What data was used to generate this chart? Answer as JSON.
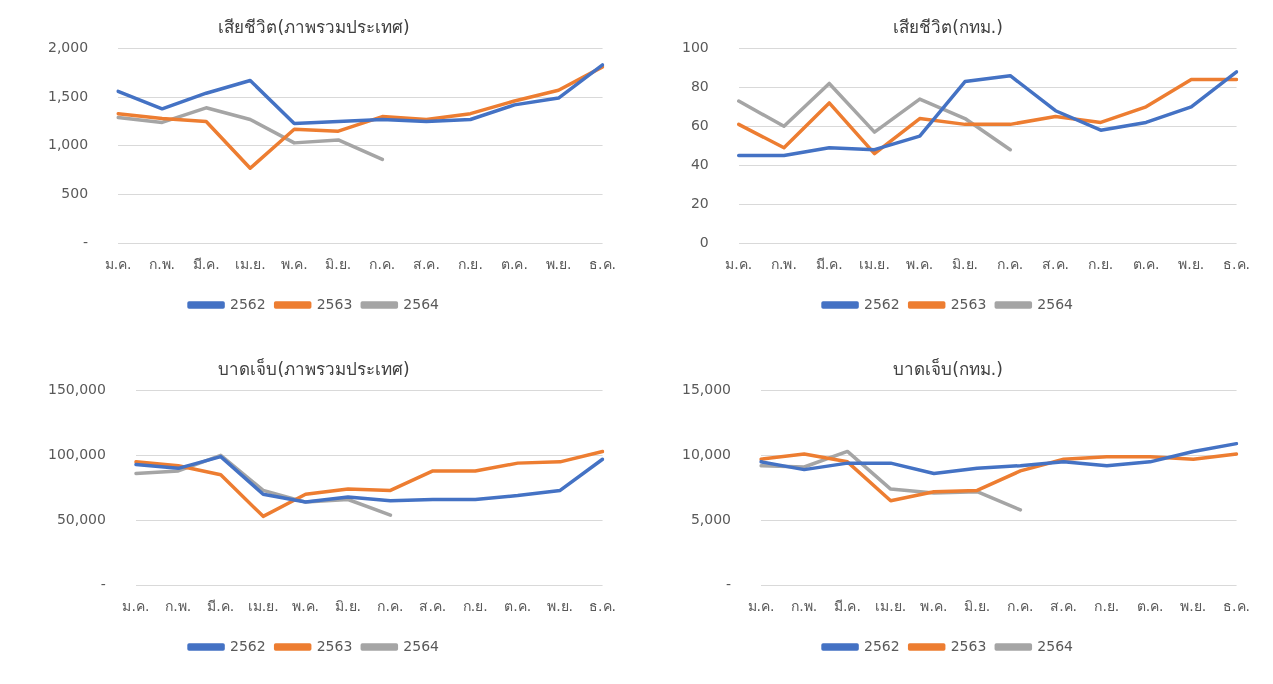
{
  "chart_data": [
    {
      "type": "line",
      "title": "เสียชีวิต(ภาพรวมประเทศ)",
      "categories": [
        "ม.ค.",
        "ก.พ.",
        "มี.ค.",
        "เม.ย.",
        "พ.ค.",
        "มิ.ย.",
        "ก.ค.",
        "ส.ค.",
        "ก.ย.",
        "ต.ค.",
        "พ.ย.",
        "ธ.ค."
      ],
      "series": [
        {
          "name": "2562",
          "color": "#4472c4",
          "values": [
            1560,
            1380,
            1540,
            1670,
            1230,
            1250,
            1270,
            1250,
            1270,
            1420,
            1490,
            1830
          ]
        },
        {
          "name": "2563",
          "color": "#ed7d31",
          "values": [
            1330,
            1280,
            1250,
            770,
            1170,
            1150,
            1300,
            1270,
            1330,
            1460,
            1570,
            1810
          ]
        },
        {
          "name": "2564",
          "color": "#a5a5a5",
          "values": [
            1290,
            1240,
            1390,
            1270,
            1030,
            1060,
            860,
            null,
            null,
            null,
            null,
            null
          ]
        }
      ],
      "ylim": [
        0,
        2000
      ],
      "yticks": [
        {
          "value": 0,
          "label": "-"
        },
        500,
        {
          "value": 1000,
          "label": "1,000"
        },
        {
          "value": 1500,
          "label": "1,500"
        },
        {
          "value": 2000,
          "label": "2,000"
        }
      ],
      "grid": "y",
      "legend": "bottom",
      "marker": "none",
      "line_style": "solid"
    },
    {
      "type": "line",
      "title": "เสียชีวิต(กทม.)",
      "categories": [
        "ม.ค.",
        "ก.พ.",
        "มี.ค.",
        "เม.ย.",
        "พ.ค.",
        "มิ.ย.",
        "ก.ค.",
        "ส.ค.",
        "ก.ย.",
        "ต.ค.",
        "พ.ย.",
        "ธ.ค."
      ],
      "series": [
        {
          "name": "2562",
          "color": "#4472c4",
          "values": [
            45,
            45,
            49,
            48,
            55,
            83,
            86,
            68,
            58,
            62,
            70,
            88
          ]
        },
        {
          "name": "2563",
          "color": "#ed7d31",
          "values": [
            61,
            49,
            72,
            46,
            64,
            61,
            61,
            65,
            62,
            70,
            84,
            84
          ]
        },
        {
          "name": "2564",
          "color": "#a5a5a5",
          "values": [
            73,
            60,
            82,
            57,
            74,
            64,
            48,
            null,
            null,
            null,
            null,
            null
          ]
        }
      ],
      "ylim": [
        0,
        100
      ],
      "yticks": [
        0,
        20,
        40,
        60,
        80,
        100
      ],
      "grid": "y",
      "legend": "bottom",
      "marker": "none",
      "line_style": "solid"
    },
    {
      "type": "line",
      "title": "บาดเจ็บ(ภาพรวมประเทศ)",
      "categories": [
        "ม.ค.",
        "ก.พ.",
        "มี.ค.",
        "เม.ย.",
        "พ.ค.",
        "มิ.ย.",
        "ก.ค.",
        "ส.ค.",
        "ก.ย.",
        "ต.ค.",
        "พ.ย.",
        "ธ.ค."
      ],
      "series": [
        {
          "name": "2562",
          "color": "#4472c4",
          "values": [
            93000,
            90000,
            99000,
            70000,
            64000,
            68000,
            65000,
            66000,
            66000,
            69000,
            73000,
            97000
          ]
        },
        {
          "name": "2563",
          "color": "#ed7d31",
          "values": [
            95000,
            92000,
            85000,
            53000,
            70000,
            74000,
            73000,
            88000,
            88000,
            94000,
            95000,
            103000
          ]
        },
        {
          "name": "2564",
          "color": "#a5a5a5",
          "values": [
            86000,
            88000,
            100000,
            73000,
            64000,
            66000,
            54000,
            null,
            null,
            null,
            null,
            null
          ]
        }
      ],
      "ylim": [
        0,
        150000
      ],
      "yticks": [
        {
          "value": 0,
          "label": "-"
        },
        {
          "value": 50000,
          "label": "50,000"
        },
        {
          "value": 100000,
          "label": "100,000"
        },
        {
          "value": 150000,
          "label": "150,000"
        }
      ],
      "grid": "y",
      "legend": "bottom",
      "marker": "none",
      "line_style": "solid"
    },
    {
      "type": "line",
      "title": "บาดเจ็บ(กทม.)",
      "categories": [
        "ม.ค.",
        "ก.พ.",
        "มี.ค.",
        "เม.ย.",
        "พ.ค.",
        "มิ.ย.",
        "ก.ค.",
        "ส.ค.",
        "ก.ย.",
        "ต.ค.",
        "พ.ย.",
        "ธ.ค."
      ],
      "series": [
        {
          "name": "2562",
          "color": "#4472c4",
          "values": [
            9500,
            8900,
            9400,
            9400,
            8600,
            9000,
            9200,
            9500,
            9200,
            9500,
            10300,
            10900
          ]
        },
        {
          "name": "2563",
          "color": "#ed7d31",
          "values": [
            9700,
            10100,
            9500,
            6500,
            7200,
            7300,
            8800,
            9700,
            9900,
            9900,
            9700,
            10100
          ]
        },
        {
          "name": "2564",
          "color": "#a5a5a5",
          "values": [
            9200,
            9100,
            10300,
            7400,
            7100,
            7200,
            5800,
            null,
            null,
            null,
            null,
            null
          ]
        }
      ],
      "ylim": [
        0,
        15000
      ],
      "yticks": [
        {
          "value": 0,
          "label": "-"
        },
        {
          "value": 5000,
          "label": "5,000"
        },
        {
          "value": 10000,
          "label": "10,000"
        },
        {
          "value": 15000,
          "label": "15,000"
        }
      ],
      "grid": "y",
      "legend": "bottom",
      "marker": "none",
      "line_style": "solid"
    }
  ]
}
